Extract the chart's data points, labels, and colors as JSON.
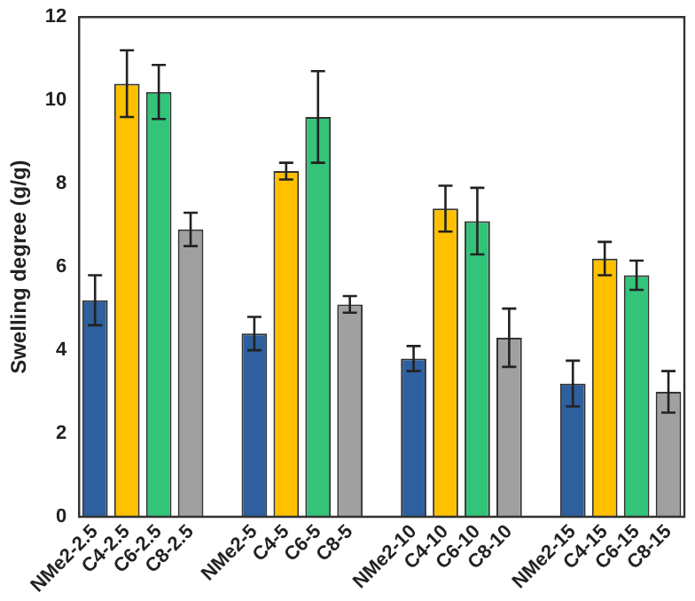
{
  "chart_data": {
    "type": "bar",
    "ylabel": "Swelling degree (g/g)",
    "categories": [
      "NMe2-2.5",
      "C4-2.5",
      "C6-2.5",
      "C8-2.5",
      null,
      "NMe2-5",
      "C4-5",
      "C6-5",
      "C8-5",
      null,
      "NMe2-10",
      "C4-10",
      "C6-10",
      "C8-10",
      null,
      "NMe2-15",
      "C4-15",
      "C6-15",
      "C8-15"
    ],
    "values": [
      5.2,
      10.4,
      10.2,
      6.9,
      null,
      4.4,
      8.3,
      9.6,
      5.1,
      null,
      3.8,
      7.4,
      7.1,
      4.3,
      null,
      3.2,
      6.2,
      5.8,
      3.0
    ],
    "errors": [
      0.6,
      0.8,
      0.65,
      0.4,
      null,
      0.4,
      0.2,
      1.1,
      0.2,
      null,
      0.3,
      0.55,
      0.8,
      0.7,
      null,
      0.55,
      0.4,
      0.35,
      0.5
    ],
    "colors": [
      "#2e5f9e",
      "#ffc000",
      "#33c47a",
      "#a0a0a0",
      null,
      "#2e5f9e",
      "#ffc000",
      "#33c47a",
      "#a0a0a0",
      null,
      "#2e5f9e",
      "#ffc000",
      "#33c47a",
      "#a0a0a0",
      null,
      "#2e5f9e",
      "#ffc000",
      "#33c47a",
      "#a0a0a0"
    ],
    "ylim": [
      0,
      12
    ],
    "yticks": [
      0,
      2,
      4,
      6,
      8,
      10,
      12
    ],
    "grid": false,
    "legend": false
  }
}
